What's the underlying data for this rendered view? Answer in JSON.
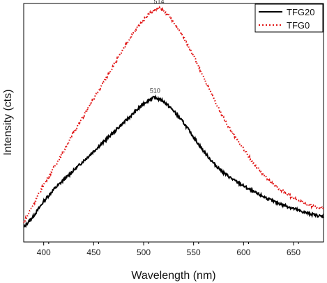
{
  "chart_data": {
    "type": "line",
    "title": "",
    "xlabel": "Wavelength (nm)",
    "ylabel": "Intensity (cts)",
    "xlim": [
      380,
      680
    ],
    "ylim": [
      0,
      100
    ],
    "x_ticks": [
      400,
      450,
      500,
      550,
      600,
      650
    ],
    "y_ticks_visible": false,
    "grid": false,
    "legend_position": "top-right",
    "series": [
      {
        "name": "TFG20",
        "color": "#000000",
        "style": "solid",
        "points": [
          [
            380,
            6
          ],
          [
            390,
            11
          ],
          [
            400,
            17
          ],
          [
            410,
            22
          ],
          [
            420,
            26
          ],
          [
            430,
            30
          ],
          [
            440,
            34
          ],
          [
            450,
            38
          ],
          [
            460,
            42
          ],
          [
            470,
            46
          ],
          [
            480,
            50
          ],
          [
            490,
            54
          ],
          [
            500,
            58
          ],
          [
            505,
            59.5
          ],
          [
            510,
            60.5
          ],
          [
            515,
            60
          ],
          [
            520,
            59
          ],
          [
            530,
            55
          ],
          [
            540,
            50
          ],
          [
            550,
            44
          ],
          [
            560,
            38
          ],
          [
            570,
            33
          ],
          [
            580,
            29
          ],
          [
            590,
            26
          ],
          [
            600,
            23.5
          ],
          [
            610,
            21
          ],
          [
            620,
            19
          ],
          [
            630,
            17
          ],
          [
            640,
            15.5
          ],
          [
            650,
            14
          ],
          [
            660,
            12.5
          ],
          [
            670,
            11.5
          ],
          [
            680,
            10.5
          ]
        ]
      },
      {
        "name": "TFG0",
        "color": "#e01010",
        "style": "dotted",
        "points": [
          [
            380,
            8
          ],
          [
            390,
            16
          ],
          [
            400,
            24
          ],
          [
            410,
            31
          ],
          [
            420,
            38
          ],
          [
            430,
            46
          ],
          [
            440,
            53
          ],
          [
            450,
            60
          ],
          [
            460,
            67
          ],
          [
            470,
            74
          ],
          [
            480,
            81
          ],
          [
            490,
            88
          ],
          [
            500,
            93
          ],
          [
            505,
            95.5
          ],
          [
            510,
            97
          ],
          [
            514,
            98
          ],
          [
            518,
            97.5
          ],
          [
            525,
            95
          ],
          [
            530,
            92
          ],
          [
            540,
            86
          ],
          [
            550,
            78
          ],
          [
            560,
            69
          ],
          [
            570,
            60
          ],
          [
            580,
            52
          ],
          [
            590,
            45
          ],
          [
            600,
            39
          ],
          [
            610,
            33
          ],
          [
            620,
            28
          ],
          [
            630,
            24
          ],
          [
            640,
            21
          ],
          [
            650,
            18.5
          ],
          [
            660,
            16.5
          ],
          [
            670,
            15
          ],
          [
            680,
            14
          ]
        ]
      }
    ],
    "annotations": [
      {
        "text": "514",
        "x": 514,
        "series": "TFG0"
      },
      {
        "text": "510",
        "x": 510,
        "series": "TFG20"
      }
    ]
  }
}
